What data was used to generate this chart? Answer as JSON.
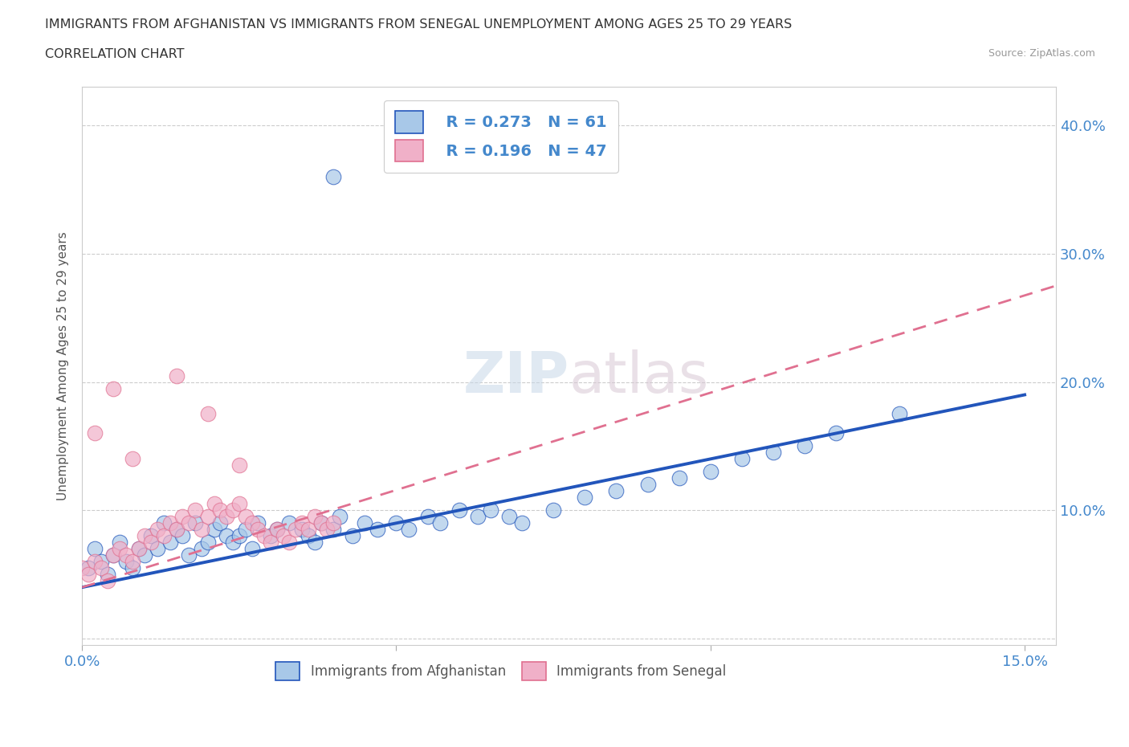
{
  "title_line1": "IMMIGRANTS FROM AFGHANISTAN VS IMMIGRANTS FROM SENEGAL UNEMPLOYMENT AMONG AGES 25 TO 29 YEARS",
  "title_line2": "CORRELATION CHART",
  "source_text": "Source: ZipAtlas.com",
  "ylabel": "Unemployment Among Ages 25 to 29 years",
  "xlim": [
    0.0,
    0.155
  ],
  "ylim": [
    -0.005,
    0.43
  ],
  "legend_r1": "R = 0.273",
  "legend_n1": "N = 61",
  "legend_r2": "R = 0.196",
  "legend_n2": "N = 47",
  "color_afghanistan": "#a8c8e8",
  "color_senegal": "#f0b0c8",
  "color_line_afghanistan": "#2255bb",
  "color_line_senegal": "#e07090",
  "background_color": "#ffffff",
  "grid_color": "#cccccc",
  "tick_color": "#4488cc",
  "watermark_color": "#d4e4f0",
  "afg_scatter_x": [
    0.001,
    0.002,
    0.003,
    0.004,
    0.005,
    0.006,
    0.007,
    0.008,
    0.009,
    0.01,
    0.011,
    0.012,
    0.013,
    0.014,
    0.015,
    0.016,
    0.017,
    0.018,
    0.019,
    0.02,
    0.021,
    0.022,
    0.023,
    0.024,
    0.025,
    0.026,
    0.027,
    0.028,
    0.03,
    0.031,
    0.033,
    0.035,
    0.036,
    0.037,
    0.038,
    0.04,
    0.041,
    0.043,
    0.045,
    0.047,
    0.05,
    0.052,
    0.055,
    0.057,
    0.06,
    0.063,
    0.065,
    0.068,
    0.07,
    0.075,
    0.08,
    0.085,
    0.09,
    0.095,
    0.1,
    0.105,
    0.11,
    0.115,
    0.12,
    0.13,
    0.04
  ],
  "afg_scatter_y": [
    0.055,
    0.07,
    0.06,
    0.05,
    0.065,
    0.075,
    0.06,
    0.055,
    0.07,
    0.065,
    0.08,
    0.07,
    0.09,
    0.075,
    0.085,
    0.08,
    0.065,
    0.09,
    0.07,
    0.075,
    0.085,
    0.09,
    0.08,
    0.075,
    0.08,
    0.085,
    0.07,
    0.09,
    0.08,
    0.085,
    0.09,
    0.085,
    0.08,
    0.075,
    0.09,
    0.085,
    0.095,
    0.08,
    0.09,
    0.085,
    0.09,
    0.085,
    0.095,
    0.09,
    0.1,
    0.095,
    0.1,
    0.095,
    0.09,
    0.1,
    0.11,
    0.115,
    0.12,
    0.125,
    0.13,
    0.14,
    0.145,
    0.15,
    0.16,
    0.175,
    0.36
  ],
  "sen_scatter_x": [
    0.0,
    0.001,
    0.002,
    0.003,
    0.004,
    0.005,
    0.006,
    0.007,
    0.008,
    0.009,
    0.01,
    0.011,
    0.012,
    0.013,
    0.014,
    0.015,
    0.016,
    0.017,
    0.018,
    0.019,
    0.02,
    0.021,
    0.022,
    0.023,
    0.024,
    0.025,
    0.026,
    0.027,
    0.028,
    0.029,
    0.03,
    0.031,
    0.032,
    0.033,
    0.034,
    0.035,
    0.036,
    0.037,
    0.038,
    0.039,
    0.04,
    0.002,
    0.015,
    0.02,
    0.005,
    0.008,
    0.025
  ],
  "sen_scatter_y": [
    0.055,
    0.05,
    0.06,
    0.055,
    0.045,
    0.065,
    0.07,
    0.065,
    0.06,
    0.07,
    0.08,
    0.075,
    0.085,
    0.08,
    0.09,
    0.085,
    0.095,
    0.09,
    0.1,
    0.085,
    0.095,
    0.105,
    0.1,
    0.095,
    0.1,
    0.105,
    0.095,
    0.09,
    0.085,
    0.08,
    0.075,
    0.085,
    0.08,
    0.075,
    0.085,
    0.09,
    0.085,
    0.095,
    0.09,
    0.085,
    0.09,
    0.16,
    0.205,
    0.175,
    0.195,
    0.14,
    0.135
  ],
  "afg_line_x": [
    0.0,
    0.15
  ],
  "afg_line_y": [
    0.04,
    0.19
  ],
  "sen_line_x": [
    0.0,
    0.155
  ],
  "sen_line_y": [
    0.04,
    0.275
  ]
}
